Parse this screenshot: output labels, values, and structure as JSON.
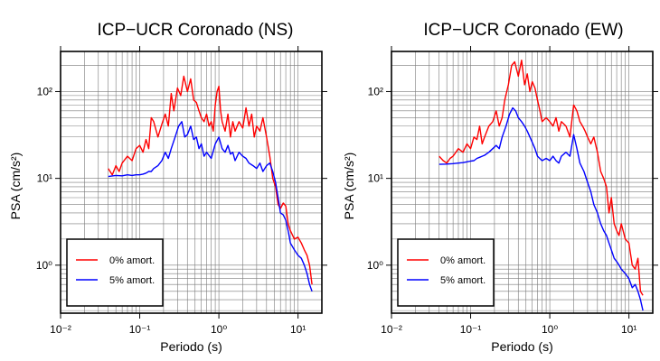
{
  "chart_data": [
    {
      "type": "line",
      "title": "ICP−UCR Coronado (NS)",
      "xlabel": "Periodo (s)",
      "ylabel": "PSA (cm/s²)",
      "x_scale": "log",
      "y_scale": "log",
      "xlim": [
        0.01,
        20
      ],
      "ylim": [
        0.28,
        290
      ],
      "grid": true,
      "legend_position": "bottom-left",
      "x_ticks": [
        {
          "value": 0.01,
          "label": "10⁻²"
        },
        {
          "value": 0.1,
          "label": "10⁻¹"
        },
        {
          "value": 1,
          "label": "10⁰"
        },
        {
          "value": 10,
          "label": "10¹"
        }
      ],
      "y_ticks": [
        {
          "value": 1,
          "label": "10⁰"
        },
        {
          "value": 10,
          "label": "10¹"
        },
        {
          "value": 100,
          "label": "10²"
        }
      ],
      "series": [
        {
          "name": "0% amort.",
          "color": "#ff0000",
          "x": [
            0.04,
            0.045,
            0.05,
            0.055,
            0.06,
            0.07,
            0.08,
            0.09,
            0.1,
            0.11,
            0.12,
            0.13,
            0.14,
            0.15,
            0.17,
            0.19,
            0.21,
            0.23,
            0.25,
            0.27,
            0.3,
            0.33,
            0.36,
            0.4,
            0.44,
            0.48,
            0.52,
            0.56,
            0.6,
            0.65,
            0.7,
            0.75,
            0.8,
            0.85,
            0.9,
            0.95,
            1.0,
            1.05,
            1.1,
            1.2,
            1.3,
            1.4,
            1.5,
            1.6,
            1.8,
            2.0,
            2.2,
            2.4,
            2.6,
            2.8,
            3.0,
            3.3,
            3.6,
            4.0,
            4.4,
            4.8,
            5.2,
            5.6,
            6.0,
            6.5,
            7.0,
            7.5,
            8.0,
            9.0,
            10.0,
            11.0,
            12.0,
            13.0,
            14.0,
            15.0
          ],
          "y": [
            13,
            11,
            14,
            12,
            15,
            18,
            16,
            22,
            24,
            20,
            28,
            22,
            50,
            45,
            30,
            42,
            55,
            40,
            95,
            60,
            110,
            90,
            150,
            100,
            140,
            80,
            75,
            60,
            50,
            45,
            55,
            40,
            45,
            35,
            70,
            100,
            115,
            60,
            45,
            35,
            55,
            30,
            45,
            35,
            45,
            38,
            65,
            40,
            55,
            30,
            40,
            35,
            50,
            30,
            18,
            10,
            8,
            5,
            4.5,
            5.2,
            4.8,
            3,
            2.5,
            2,
            2.1,
            1.8,
            1.5,
            1.3,
            1.0,
            0.6
          ]
        },
        {
          "name": "5% amort.",
          "color": "#0000ff",
          "x": [
            0.04,
            0.05,
            0.06,
            0.07,
            0.08,
            0.09,
            0.1,
            0.11,
            0.12,
            0.13,
            0.14,
            0.15,
            0.17,
            0.19,
            0.21,
            0.23,
            0.25,
            0.28,
            0.31,
            0.34,
            0.37,
            0.4,
            0.44,
            0.48,
            0.52,
            0.56,
            0.6,
            0.65,
            0.7,
            0.8,
            0.9,
            1.0,
            1.1,
            1.2,
            1.3,
            1.4,
            1.5,
            1.6,
            1.8,
            2.0,
            2.2,
            2.4,
            2.7,
            3.0,
            3.3,
            3.6,
            4.0,
            4.4,
            4.8,
            5.2,
            5.6,
            6.0,
            6.5,
            7.0,
            7.5,
            8.0,
            9.0,
            10.0,
            11.0,
            12.0,
            13.0,
            14.0,
            15.0
          ],
          "y": [
            10.5,
            10.8,
            10.7,
            11,
            10.8,
            11,
            11,
            11.2,
            11.5,
            12,
            12,
            13,
            14,
            16,
            20,
            17,
            22,
            30,
            40,
            45,
            30,
            32,
            40,
            28,
            30,
            22,
            25,
            18,
            20,
            17,
            25,
            30,
            22,
            20,
            24,
            19,
            20,
            16,
            20,
            18,
            17,
            15,
            14,
            13,
            15,
            12,
            14,
            15,
            12,
            9,
            6,
            4,
            3.8,
            3.3,
            2.5,
            1.8,
            1.5,
            1.3,
            1.2,
            1.0,
            0.8,
            0.6,
            0.5
          ]
        }
      ]
    },
    {
      "type": "line",
      "title": "ICP−UCR Coronado (EW)",
      "xlabel": "Periodo (s)",
      "ylabel": "PSA (cm/s²)",
      "x_scale": "log",
      "y_scale": "log",
      "xlim": [
        0.01,
        20
      ],
      "ylim": [
        0.28,
        290
      ],
      "grid": true,
      "legend_position": "bottom-left",
      "x_ticks": [
        {
          "value": 0.01,
          "label": "10⁻²"
        },
        {
          "value": 0.1,
          "label": "10⁻¹"
        },
        {
          "value": 1,
          "label": "10⁰"
        },
        {
          "value": 10,
          "label": "10¹"
        }
      ],
      "y_ticks": [
        {
          "value": 1,
          "label": "10⁰"
        },
        {
          "value": 10,
          "label": "10¹"
        },
        {
          "value": 100,
          "label": "10²"
        }
      ],
      "series": [
        {
          "name": "0% amort.",
          "color": "#ff0000",
          "x": [
            0.04,
            0.045,
            0.05,
            0.055,
            0.06,
            0.07,
            0.08,
            0.09,
            0.1,
            0.11,
            0.12,
            0.13,
            0.14,
            0.15,
            0.17,
            0.19,
            0.21,
            0.23,
            0.25,
            0.27,
            0.3,
            0.33,
            0.36,
            0.4,
            0.44,
            0.48,
            0.52,
            0.56,
            0.6,
            0.65,
            0.7,
            0.75,
            0.8,
            0.9,
            1.0,
            1.1,
            1.2,
            1.3,
            1.4,
            1.6,
            1.8,
            2.0,
            2.2,
            2.4,
            2.6,
            2.8,
            3.0,
            3.3,
            3.6,
            4.0,
            4.4,
            4.8,
            5.2,
            5.6,
            6.0,
            6.5,
            7.0,
            7.5,
            8.0,
            9.0,
            10.0,
            11.0,
            12.0,
            13.0,
            14.0,
            15.0
          ],
          "y": [
            18,
            16,
            15,
            17,
            18,
            22,
            20,
            25,
            22,
            30,
            28,
            40,
            25,
            30,
            40,
            45,
            60,
            40,
            50,
            80,
            120,
            200,
            220,
            150,
            230,
            120,
            160,
            100,
            130,
            110,
            80,
            60,
            45,
            50,
            45,
            40,
            50,
            35,
            45,
            40,
            30,
            70,
            60,
            45,
            40,
            35,
            30,
            25,
            30,
            20,
            12,
            10,
            8,
            4,
            6,
            3,
            2.5,
            2.2,
            3,
            2,
            1.8,
            1.0,
            0.9,
            1.2,
            0.5,
            0.45
          ]
        },
        {
          "name": "5% amort.",
          "color": "#0000ff",
          "x": [
            0.04,
            0.05,
            0.06,
            0.07,
            0.08,
            0.09,
            0.1,
            0.11,
            0.12,
            0.13,
            0.14,
            0.15,
            0.17,
            0.19,
            0.21,
            0.23,
            0.25,
            0.28,
            0.31,
            0.34,
            0.37,
            0.4,
            0.44,
            0.48,
            0.52,
            0.56,
            0.6,
            0.65,
            0.7,
            0.8,
            0.9,
            1.0,
            1.1,
            1.2,
            1.3,
            1.4,
            1.6,
            1.8,
            2.0,
            2.2,
            2.4,
            2.7,
            3.0,
            3.3,
            3.6,
            4.0,
            4.4,
            4.8,
            5.2,
            5.6,
            6.0,
            6.5,
            7.0,
            7.5,
            8.0,
            9.0,
            10.0,
            11.0,
            12.0,
            13.0,
            14.0,
            15.0
          ],
          "y": [
            14.5,
            14.6,
            14.8,
            15,
            15.2,
            15.5,
            15.8,
            16,
            17,
            17.5,
            18,
            18.5,
            20,
            22,
            24,
            22,
            30,
            40,
            55,
            65,
            60,
            50,
            45,
            40,
            35,
            30,
            26,
            22,
            18,
            16,
            17,
            16,
            18,
            16,
            15,
            18,
            20,
            18,
            32,
            22,
            15,
            12,
            9,
            7,
            5,
            4,
            3,
            2.5,
            2.2,
            1.8,
            1.5,
            1.2,
            1.1,
            1.0,
            0.9,
            0.8,
            0.7,
            0.55,
            0.6,
            0.5,
            0.4,
            0.3
          ]
        }
      ]
    }
  ]
}
